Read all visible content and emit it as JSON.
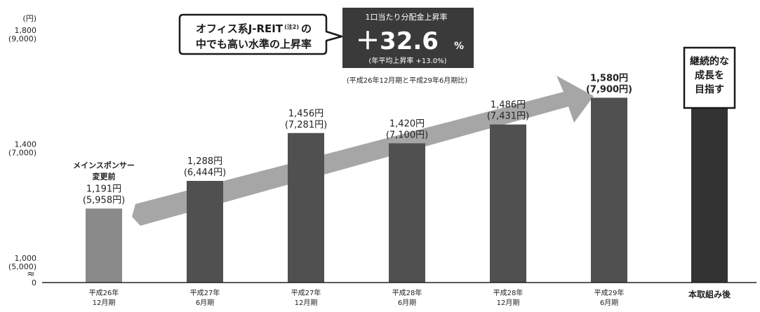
{
  "chart_data": {
    "type": "bar",
    "y_unit": "(円)",
    "y_ticks": [
      {
        "value": 1800,
        "label": "1,800",
        "sublabel": "(9,000)"
      },
      {
        "value": 1400,
        "label": "1,400",
        "sublabel": "(7,000)"
      },
      {
        "value": 1000,
        "label": "1,000",
        "sublabel": "(5,000)"
      }
    ],
    "y_zero_label": "0",
    "y_break_symbol": "≈",
    "ylim": [
      1000,
      1800
    ],
    "categories": [
      {
        "line1": "平成26年",
        "line2": "12月期"
      },
      {
        "line1": "平成27年",
        "line2": "6月期"
      },
      {
        "line1": "平成27年",
        "line2": "12月期"
      },
      {
        "line1": "平成28年",
        "line2": "6月期"
      },
      {
        "line1": "平成28年",
        "line2": "12月期"
      },
      {
        "line1": "平成29年",
        "line2": "6月期"
      },
      {
        "line1": "本取組み後",
        "line2": ""
      }
    ],
    "values": [
      1191,
      1288,
      1456,
      1420,
      1486,
      1580,
      1580
    ],
    "value_labels": [
      {
        "main": "1,191円",
        "sub": "(5,958円)",
        "pre": [
          "メインスポンサー",
          "変更前"
        ]
      },
      {
        "main": "1,288円",
        "sub": "(6,444円)",
        "pre": []
      },
      {
        "main": "1,456円",
        "sub": "(7,281円)",
        "pre": []
      },
      {
        "main": "1,420円",
        "sub": "(7,100円)",
        "pre": []
      },
      {
        "main": "1,486円",
        "sub": "(7,431円)",
        "pre": []
      },
      {
        "main": "1,580円",
        "sub": "(7,900円)",
        "pre": []
      },
      {
        "main": "",
        "sub": "",
        "pre": []
      }
    ],
    "bar_colors": [
      "#8a8a8a",
      "#505050",
      "#505050",
      "#505050",
      "#505050",
      "#505050",
      "#333333"
    ],
    "final_callout": [
      "継続的な",
      "成長を",
      "目指す"
    ],
    "arrow_color": "#a6a6a6",
    "callout": {
      "line1": "オフィス系J-REIT",
      "note": "(注2)",
      "line1_suffix": "の",
      "line2": "中でも高い水準の上昇率"
    },
    "highlight": {
      "title": "1口当たり分配金上昇率",
      "value": "＋32.6",
      "value_unit": "%",
      "sub": "(年平均上昇率 +13.0%)",
      "footnote": "(平成26年12月期と平成29年6月期比)"
    },
    "colors": {
      "highlight_bg": "#3a3a3a",
      "axis": "#222222",
      "text": "#222222"
    }
  }
}
